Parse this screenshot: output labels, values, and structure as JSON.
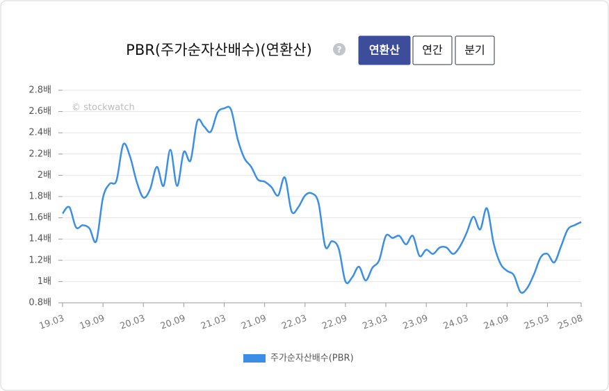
{
  "title": "PBR(주가순자산배수)(연환산)",
  "help": "?",
  "buttons": [
    {
      "label": "연환산",
      "active": true
    },
    {
      "label": "연간",
      "active": false
    },
    {
      "label": "분기",
      "active": false
    }
  ],
  "chart_data": {
    "type": "line",
    "watermark": "© stockwatch",
    "categories": [
      "19.03",
      null,
      null,
      null,
      null,
      null,
      "19.09",
      null,
      null,
      null,
      null,
      null,
      "20.03",
      null,
      null,
      null,
      null,
      null,
      "20.09",
      null,
      null,
      null,
      null,
      null,
      "21.03",
      null,
      null,
      null,
      null,
      null,
      "21.09",
      null,
      null,
      null,
      null,
      null,
      "22.03",
      null,
      null,
      null,
      null,
      null,
      "22.09",
      null,
      null,
      null,
      null,
      null,
      "23.03",
      null,
      null,
      null,
      null,
      null,
      "23.09",
      null,
      null,
      null,
      null,
      null,
      "24.03",
      null,
      null,
      null,
      null,
      null,
      "24.09",
      null,
      null,
      null,
      null,
      null,
      "25.03",
      null,
      null,
      null,
      null,
      "25.08"
    ],
    "series": [
      {
        "name": "주가순자산배수(PBR)",
        "color": "#3a8ee6",
        "values": [
          1.64,
          1.7,
          1.51,
          1.53,
          1.5,
          1.38,
          1.79,
          1.92,
          1.95,
          2.29,
          2.18,
          1.94,
          1.79,
          1.87,
          2.08,
          1.9,
          2.24,
          1.9,
          2.22,
          2.14,
          2.51,
          2.46,
          2.41,
          2.59,
          2.63,
          2.62,
          2.34,
          2.16,
          2.08,
          1.96,
          1.94,
          1.89,
          1.81,
          1.98,
          1.66,
          1.7,
          1.81,
          1.83,
          1.74,
          1.33,
          1.38,
          1.31,
          1.0,
          1.04,
          1.14,
          1.01,
          1.13,
          1.2,
          1.43,
          1.41,
          1.43,
          1.35,
          1.43,
          1.24,
          1.3,
          1.26,
          1.32,
          1.32,
          1.26,
          1.33,
          1.46,
          1.61,
          1.49,
          1.69,
          1.36,
          1.17,
          1.1,
          1.06,
          0.9,
          0.94,
          1.07,
          1.23,
          1.26,
          1.18,
          1.33,
          1.49,
          1.53,
          1.56
        ]
      }
    ],
    "ylim": [
      0.8,
      2.8
    ],
    "yticks": [
      {
        "value": 0.8,
        "label": "0.8배"
      },
      {
        "value": 1,
        "label": "1배"
      },
      {
        "value": 1.2,
        "label": "1.2배"
      },
      {
        "value": 1.4,
        "label": "1.4배"
      },
      {
        "value": 1.6,
        "label": "1.6배"
      },
      {
        "value": 1.8,
        "label": "1.8배"
      },
      {
        "value": 2,
        "label": "2배"
      },
      {
        "value": 2.2,
        "label": "2.2배"
      },
      {
        "value": 2.4,
        "label": "2.4배"
      },
      {
        "value": 2.6,
        "label": "2.6배"
      },
      {
        "value": 2.8,
        "label": "2.8배"
      }
    ],
    "grid": true,
    "legend": "bottom"
  }
}
